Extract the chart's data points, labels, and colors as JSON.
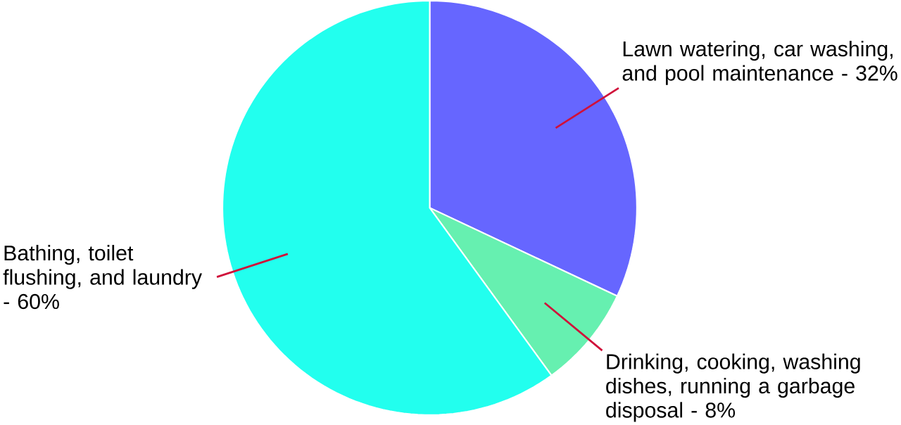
{
  "chart_data": {
    "type": "pie",
    "categories": [
      "Lawn watering, car washing, and pool maintenance - 32%",
      "Drinking, cooking, washing dishes, running a garbage disposal - 8%",
      "Bathing, toilet flushing, and laundry - 60%"
    ],
    "values": [
      32,
      8,
      60
    ],
    "colors": [
      "#6666ff",
      "#66f0b0",
      "#22ffee"
    ]
  }
}
